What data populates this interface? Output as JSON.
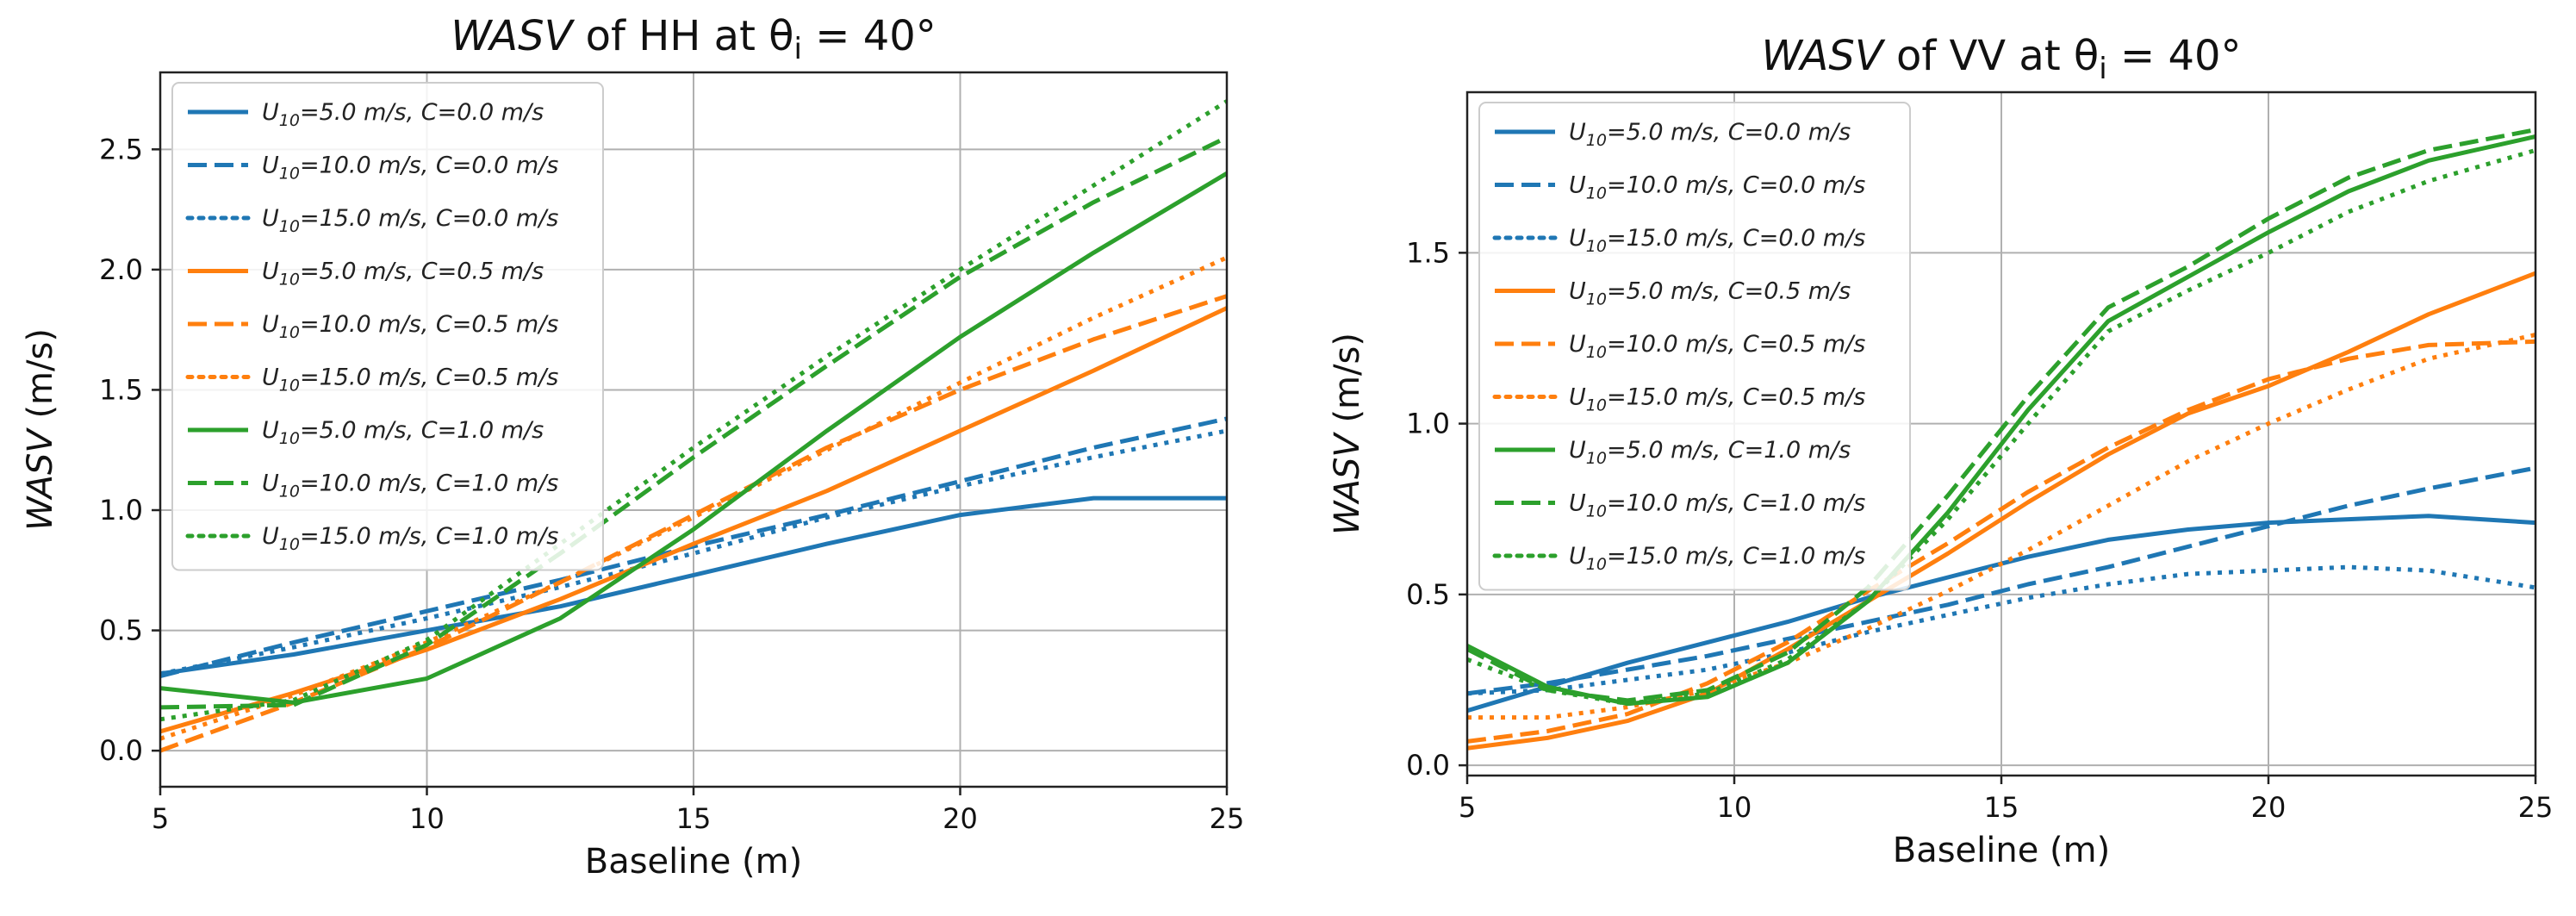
{
  "colors": {
    "blue": "#1f77b4",
    "orange": "#ff7f0e",
    "green": "#2ca02c"
  },
  "chart_data": [
    {
      "type": "line",
      "title_italic": "WASV",
      "title_rest": " of HH at θ",
      "title_sub": "i",
      "title_tail": " = 40°",
      "xlabel": "Baseline (m)",
      "ylabel_italic": "WASV",
      "ylabel_rest": " (m/s)",
      "xlim": [
        5,
        25
      ],
      "ylim": [
        -0.15,
        2.82
      ],
      "xticks": [
        5,
        10,
        15,
        20,
        25
      ],
      "yticks": [
        0.0,
        0.5,
        1.0,
        1.5,
        2.0,
        2.5
      ],
      "ytick_labels": [
        "0.0",
        "0.5",
        "1.0",
        "1.5",
        "2.0",
        "2.5"
      ],
      "legend_position": "upper-left",
      "grid": true,
      "x": [
        5,
        7.5,
        10,
        12.5,
        15,
        17.5,
        20,
        22.5,
        25
      ],
      "series": [
        {
          "name": "U10=5.0 m/s, C=0.0 m/s",
          "color": "blue",
          "dash": "solid",
          "values": [
            0.32,
            0.4,
            0.5,
            0.6,
            0.73,
            0.86,
            0.98,
            1.05,
            1.05
          ]
        },
        {
          "name": "U10=10.0 m/s, C=0.0 m/s",
          "color": "blue",
          "dash": "dashed",
          "values": [
            0.31,
            0.45,
            0.58,
            0.71,
            0.85,
            0.98,
            1.12,
            1.26,
            1.38
          ]
        },
        {
          "name": "U10=15.0 m/s, C=0.0 m/s",
          "color": "blue",
          "dash": "dotted",
          "values": [
            0.32,
            0.43,
            0.55,
            0.68,
            0.82,
            0.97,
            1.1,
            1.22,
            1.33
          ]
        },
        {
          "name": "U10=5.0 m/s, C=0.5 m/s",
          "color": "orange",
          "dash": "solid",
          "values": [
            0.08,
            0.24,
            0.42,
            0.63,
            0.86,
            1.08,
            1.33,
            1.58,
            1.84
          ]
        },
        {
          "name": "U10=10.0 m/s, C=0.5 m/s",
          "color": "orange",
          "dash": "dashed",
          "values": [
            0.0,
            0.2,
            0.43,
            0.7,
            0.98,
            1.26,
            1.5,
            1.71,
            1.89
          ]
        },
        {
          "name": "U10=15.0 m/s, C=0.5 m/s",
          "color": "orange",
          "dash": "dotted",
          "values": [
            0.05,
            0.23,
            0.45,
            0.7,
            0.97,
            1.25,
            1.53,
            1.8,
            2.05
          ]
        },
        {
          "name": "U10=5.0 m/s, C=1.0 m/s",
          "color": "green",
          "dash": "solid",
          "values": [
            0.26,
            0.2,
            0.3,
            0.55,
            0.92,
            1.33,
            1.72,
            2.07,
            2.4
          ]
        },
        {
          "name": "U10=10.0 m/s, C=1.0 m/s",
          "color": "green",
          "dash": "dashed",
          "values": [
            0.18,
            0.19,
            0.44,
            0.82,
            1.22,
            1.6,
            1.97,
            2.28,
            2.55
          ]
        },
        {
          "name": "U10=15.0 m/s, C=1.0 m/s",
          "color": "green",
          "dash": "dotted",
          "values": [
            0.13,
            0.21,
            0.46,
            0.86,
            1.26,
            1.64,
            2.0,
            2.35,
            2.7
          ]
        }
      ]
    },
    {
      "type": "line",
      "title_italic": "WASV",
      "title_rest": " of VV at θ",
      "title_sub": "i",
      "title_tail": " = 40°",
      "xlabel": "Baseline (m)",
      "ylabel_italic": "WASV",
      "ylabel_rest": " (m/s)",
      "xlim": [
        5,
        25
      ],
      "ylim": [
        -0.03,
        1.97
      ],
      "xticks": [
        5,
        10,
        15,
        20,
        25
      ],
      "yticks": [
        0.0,
        0.5,
        1.0,
        1.5
      ],
      "ytick_labels": [
        "0.0",
        "0.5",
        "1.0",
        "1.5"
      ],
      "legend_position": "upper-left",
      "grid": true,
      "x": [
        5,
        6.5,
        8,
        9.5,
        11,
        12.5,
        14,
        15.5,
        17,
        18.5,
        20,
        21.5,
        23,
        25
      ],
      "series": [
        {
          "name": "U10=5.0 m/s, C=0.0 m/s",
          "color": "blue",
          "dash": "solid",
          "values": [
            0.16,
            0.23,
            0.3,
            0.36,
            0.42,
            0.49,
            0.55,
            0.61,
            0.66,
            0.69,
            0.71,
            0.72,
            0.73,
            0.71
          ]
        },
        {
          "name": "U10=10.0 m/s, C=0.0 m/s",
          "color": "blue",
          "dash": "dashed",
          "values": [
            0.21,
            0.24,
            0.28,
            0.32,
            0.37,
            0.42,
            0.47,
            0.53,
            0.58,
            0.64,
            0.7,
            0.76,
            0.81,
            0.87
          ]
        },
        {
          "name": "U10=15.0 m/s, C=0.0 m/s",
          "color": "blue",
          "dash": "dotted",
          "values": [
            0.21,
            0.22,
            0.25,
            0.28,
            0.33,
            0.39,
            0.44,
            0.49,
            0.53,
            0.56,
            0.57,
            0.58,
            0.57,
            0.52
          ]
        },
        {
          "name": "U10=5.0 m/s, C=0.5 m/s",
          "color": "orange",
          "dash": "solid",
          "values": [
            0.05,
            0.08,
            0.13,
            0.21,
            0.34,
            0.48,
            0.62,
            0.77,
            0.91,
            1.03,
            1.11,
            1.21,
            1.32,
            1.44
          ]
        },
        {
          "name": "U10=10.0 m/s, C=0.5 m/s",
          "color": "orange",
          "dash": "dashed",
          "values": [
            0.07,
            0.1,
            0.15,
            0.24,
            0.36,
            0.51,
            0.65,
            0.8,
            0.93,
            1.04,
            1.13,
            1.19,
            1.23,
            1.24
          ]
        },
        {
          "name": "U10=15.0 m/s, C=0.5 m/s",
          "color": "orange",
          "dash": "dotted",
          "values": [
            0.14,
            0.14,
            0.17,
            0.22,
            0.3,
            0.4,
            0.51,
            0.63,
            0.76,
            0.89,
            1.0,
            1.1,
            1.19,
            1.26
          ]
        },
        {
          "name": "U10=5.0 m/s, C=1.0 m/s",
          "color": "green",
          "dash": "solid",
          "values": [
            0.35,
            0.23,
            0.18,
            0.2,
            0.3,
            0.48,
            0.74,
            1.04,
            1.3,
            1.43,
            1.56,
            1.68,
            1.77,
            1.84
          ]
        },
        {
          "name": "U10=10.0 m/s, C=1.0 m/s",
          "color": "green",
          "dash": "dashed",
          "values": [
            0.34,
            0.22,
            0.19,
            0.22,
            0.33,
            0.52,
            0.79,
            1.08,
            1.34,
            1.46,
            1.6,
            1.72,
            1.8,
            1.86
          ]
        },
        {
          "name": "U10=15.0 m/s, C=1.0 m/s",
          "color": "green",
          "dash": "dotted",
          "values": [
            0.31,
            0.22,
            0.18,
            0.21,
            0.31,
            0.48,
            0.72,
            1.0,
            1.27,
            1.39,
            1.5,
            1.62,
            1.71,
            1.8
          ]
        }
      ]
    }
  ]
}
